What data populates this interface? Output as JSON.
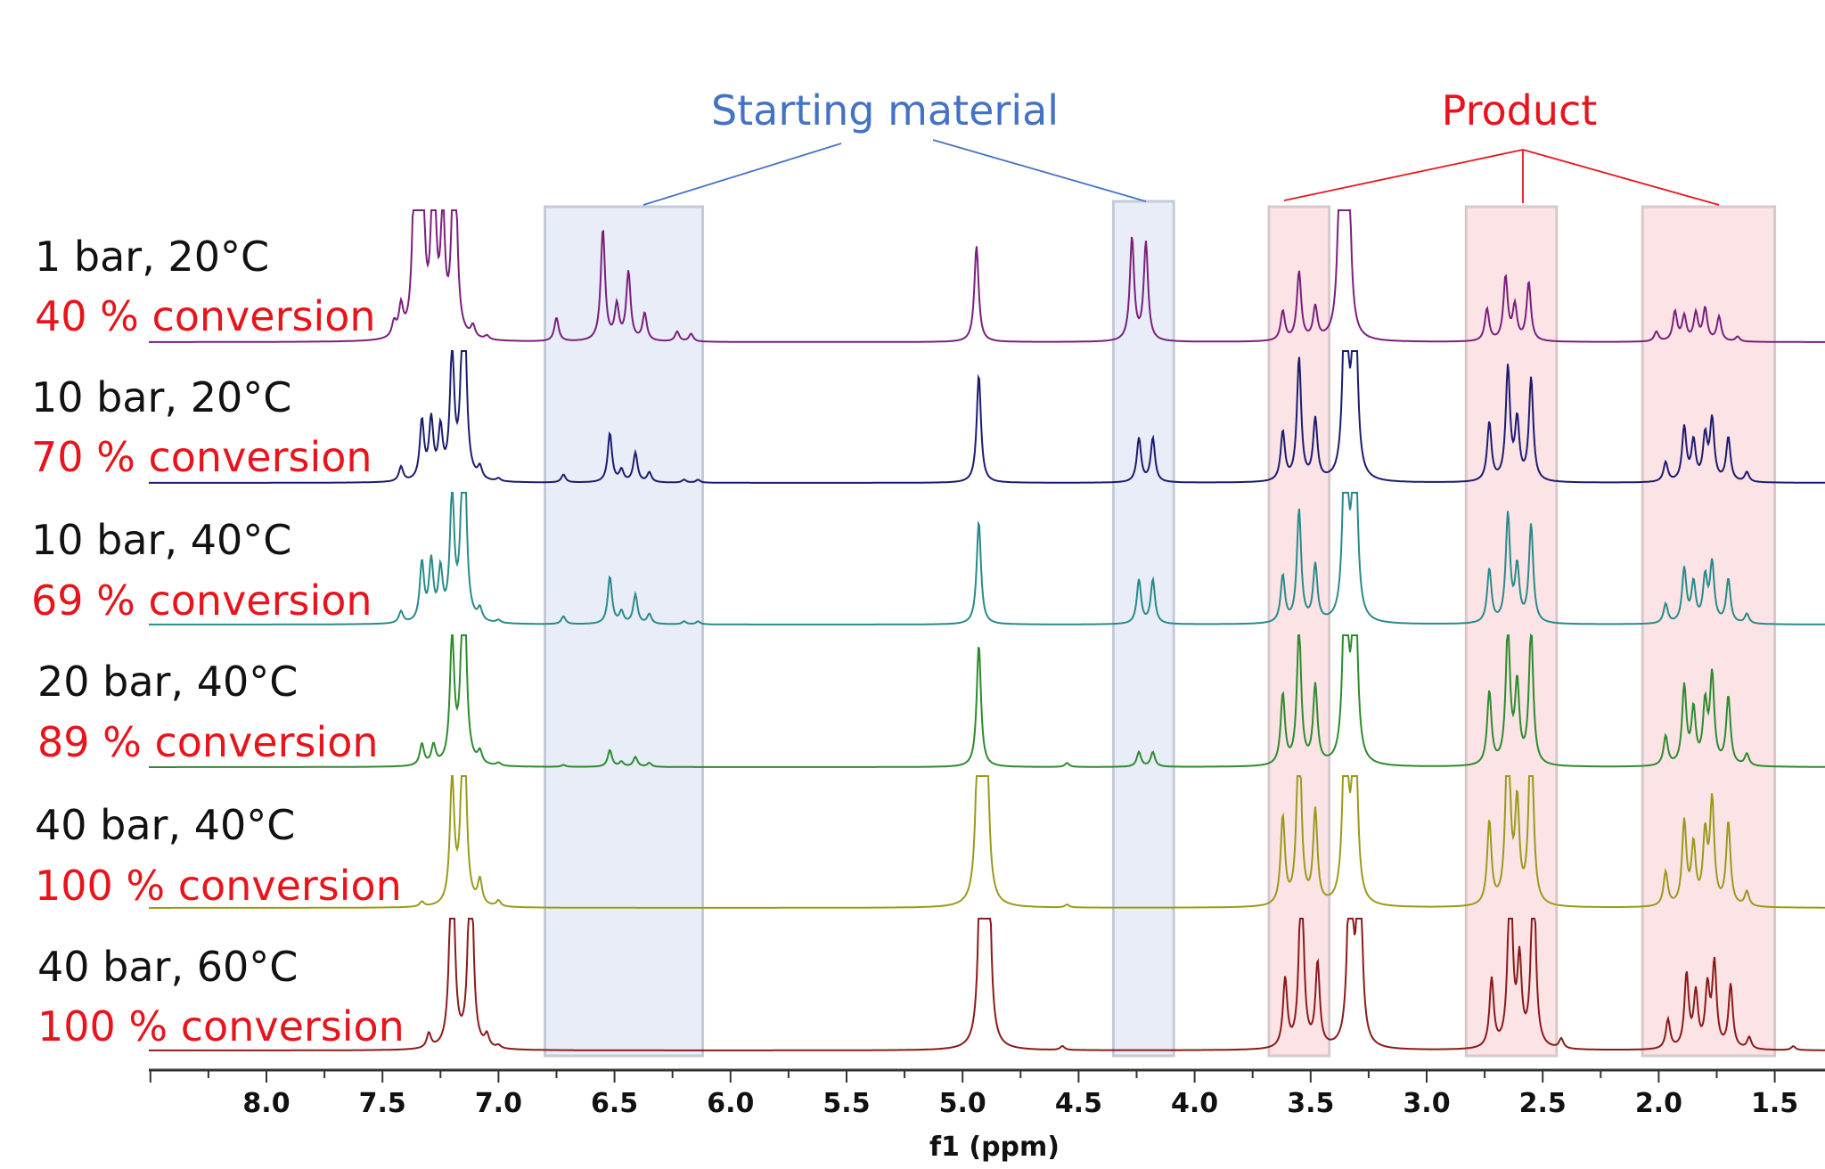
{
  "chart_data": {
    "type": "line",
    "title": "",
    "xlabel": "f1 (ppm)",
    "ylabel": "",
    "xlim": [
      8.5,
      1.28
    ],
    "x_reversed": true,
    "grid": false,
    "x_ticks": [
      "8.0",
      "7.5",
      "7.0",
      "6.5",
      "6.0",
      "5.5",
      "5.0",
      "4.5",
      "4.0",
      "3.5",
      "3.0",
      "2.5",
      "2.0",
      "1.5"
    ],
    "x_tick_values": [
      8.0,
      7.5,
      7.0,
      6.5,
      6.0,
      5.5,
      5.0,
      4.5,
      4.0,
      3.5,
      3.0,
      2.5,
      2.0,
      1.5
    ],
    "annotations": {
      "starting_material": {
        "label": "Starting material",
        "color": "#4472c4",
        "regions_ppm": [
          [
            6.8,
            6.12
          ],
          [
            4.35,
            4.09
          ]
        ]
      },
      "product": {
        "label": "Product",
        "color": "#e8141c",
        "regions_ppm": [
          [
            3.68,
            3.42
          ],
          [
            2.83,
            2.44
          ],
          [
            2.07,
            1.5
          ]
        ]
      }
    },
    "series": [
      {
        "label": "1 bar, 20°C",
        "conversion": "40 % conversion",
        "color": "#7b1f7e",
        "peaks": [
          [
            7.45,
            0.15
          ],
          [
            7.42,
            0.3
          ],
          [
            7.36,
            2
          ],
          [
            7.33,
            2
          ],
          [
            7.28,
            2
          ],
          [
            7.24,
            1.2
          ],
          [
            7.19,
            2.5
          ],
          [
            7.11,
            0.12
          ],
          [
            7.05,
            0.04
          ],
          [
            6.75,
            0.24
          ],
          [
            6.55,
            1.14
          ],
          [
            6.49,
            0.35
          ],
          [
            6.44,
            0.7
          ],
          [
            6.37,
            0.28
          ],
          [
            6.23,
            0.1
          ],
          [
            6.17,
            0.08
          ],
          [
            4.94,
            0.98
          ],
          [
            4.27,
            1.05
          ],
          [
            4.21,
            1.0
          ],
          [
            3.62,
            0.3
          ],
          [
            3.55,
            0.7
          ],
          [
            3.48,
            0.33
          ],
          [
            3.37,
            2.5
          ],
          [
            3.34,
            2.5
          ],
          [
            2.74,
            0.33
          ],
          [
            2.66,
            0.65
          ],
          [
            2.62,
            0.35
          ],
          [
            2.56,
            0.6
          ],
          [
            2.01,
            0.1
          ],
          [
            1.93,
            0.3
          ],
          [
            1.89,
            0.25
          ],
          [
            1.84,
            0.28
          ],
          [
            1.8,
            0.33
          ],
          [
            1.74,
            0.25
          ],
          [
            1.66,
            0.05
          ]
        ]
      },
      {
        "label": "10 bar, 20°C",
        "conversion": "70 % conversion",
        "color": "#1c1c70",
        "peaks": [
          [
            7.42,
            0.15
          ],
          [
            7.33,
            0.6
          ],
          [
            7.29,
            0.6
          ],
          [
            7.25,
            0.5
          ],
          [
            7.2,
            1.3
          ],
          [
            7.15,
            2.5
          ],
          [
            7.08,
            0.12
          ],
          [
            7.0,
            0.03
          ],
          [
            6.72,
            0.08
          ],
          [
            6.52,
            0.5
          ],
          [
            6.47,
            0.12
          ],
          [
            6.41,
            0.3
          ],
          [
            6.35,
            0.1
          ],
          [
            6.2,
            0.03
          ],
          [
            6.14,
            0.03
          ],
          [
            4.93,
            1.1
          ],
          [
            4.24,
            0.45
          ],
          [
            4.18,
            0.45
          ],
          [
            3.62,
            0.5
          ],
          [
            3.55,
            1.25
          ],
          [
            3.48,
            0.62
          ],
          [
            3.35,
            2.5
          ],
          [
            3.31,
            2.5
          ],
          [
            2.73,
            0.6
          ],
          [
            2.65,
            1.15
          ],
          [
            2.61,
            0.6
          ],
          [
            2.55,
            1.05
          ],
          [
            1.97,
            0.2
          ],
          [
            1.89,
            0.55
          ],
          [
            1.85,
            0.4
          ],
          [
            1.8,
            0.45
          ],
          [
            1.77,
            0.62
          ],
          [
            1.7,
            0.45
          ],
          [
            1.62,
            0.1
          ]
        ]
      },
      {
        "label": "10 bar, 40°C",
        "conversion": "69 % conversion",
        "color": "#2a8a8a",
        "peaks": [
          [
            7.42,
            0.12
          ],
          [
            7.33,
            0.6
          ],
          [
            7.29,
            0.6
          ],
          [
            7.25,
            0.5
          ],
          [
            7.2,
            1.3
          ],
          [
            7.15,
            2.5
          ],
          [
            7.08,
            0.12
          ],
          [
            7.0,
            0.03
          ],
          [
            6.72,
            0.08
          ],
          [
            6.52,
            0.48
          ],
          [
            6.47,
            0.12
          ],
          [
            6.41,
            0.3
          ],
          [
            6.35,
            0.1
          ],
          [
            6.2,
            0.03
          ],
          [
            6.14,
            0.03
          ],
          [
            4.93,
            1.05
          ],
          [
            4.24,
            0.45
          ],
          [
            4.18,
            0.45
          ],
          [
            3.62,
            0.48
          ],
          [
            3.55,
            1.15
          ],
          [
            3.48,
            0.58
          ],
          [
            3.35,
            2.5
          ],
          [
            3.31,
            2.5
          ],
          [
            2.73,
            0.55
          ],
          [
            2.65,
            1.1
          ],
          [
            2.61,
            0.55
          ],
          [
            2.55,
            1.0
          ],
          [
            1.97,
            0.2
          ],
          [
            1.89,
            0.55
          ],
          [
            1.85,
            0.4
          ],
          [
            1.8,
            0.45
          ],
          [
            1.77,
            0.6
          ],
          [
            1.7,
            0.45
          ],
          [
            1.62,
            0.1
          ]
        ]
      },
      {
        "label": "20 bar, 40°C",
        "conversion": "89 % conversion",
        "color": "#2e8b2e",
        "peaks": [
          [
            7.33,
            0.22
          ],
          [
            7.28,
            0.2
          ],
          [
            7.2,
            1.3
          ],
          [
            7.15,
            2.5
          ],
          [
            7.08,
            0.12
          ],
          [
            7.0,
            0.03
          ],
          [
            6.72,
            0.02
          ],
          [
            6.52,
            0.17
          ],
          [
            6.47,
            0.05
          ],
          [
            6.41,
            0.1
          ],
          [
            6.35,
            0.04
          ],
          [
            4.93,
            1.25
          ],
          [
            4.55,
            0.04
          ],
          [
            4.24,
            0.15
          ],
          [
            4.18,
            0.15
          ],
          [
            3.62,
            0.72
          ],
          [
            3.55,
            1.4
          ],
          [
            3.48,
            0.8
          ],
          [
            3.35,
            2.5
          ],
          [
            3.31,
            2.5
          ],
          [
            2.73,
            0.75
          ],
          [
            2.65,
            1.4
          ],
          [
            2.61,
            0.8
          ],
          [
            2.55,
            1.4
          ],
          [
            1.97,
            0.3
          ],
          [
            1.89,
            0.8
          ],
          [
            1.85,
            0.55
          ],
          [
            1.8,
            0.6
          ],
          [
            1.77,
            0.9
          ],
          [
            1.7,
            0.7
          ],
          [
            1.62,
            0.12
          ]
        ]
      },
      {
        "label": "40 bar, 40°C",
        "conversion": "100 % conversion",
        "color": "#9a9a1e",
        "peaks": [
          [
            7.33,
            0.05
          ],
          [
            7.2,
            1.3
          ],
          [
            7.15,
            2.5
          ],
          [
            7.08,
            0.25
          ],
          [
            7.0,
            0.06
          ],
          [
            4.93,
            2.5
          ],
          [
            4.9,
            2.5
          ],
          [
            4.55,
            0.03
          ],
          [
            3.62,
            0.9
          ],
          [
            3.55,
            2
          ],
          [
            3.48,
            0.95
          ],
          [
            3.35,
            2.5
          ],
          [
            3.31,
            2.5
          ],
          [
            2.73,
            0.85
          ],
          [
            2.65,
            2
          ],
          [
            2.61,
            1.0
          ],
          [
            2.55,
            2
          ],
          [
            1.97,
            0.35
          ],
          [
            1.89,
            0.85
          ],
          [
            1.85,
            0.6
          ],
          [
            1.8,
            0.7
          ],
          [
            1.77,
            1.05
          ],
          [
            1.7,
            0.85
          ],
          [
            1.62,
            0.15
          ]
        ]
      },
      {
        "label": "40 bar, 60°C",
        "conversion": "100 % conversion",
        "color": "#8b1a1a",
        "peaks": [
          [
            7.3,
            0.15
          ],
          [
            7.2,
            2.5
          ],
          [
            7.12,
            2.5
          ],
          [
            7.05,
            0.12
          ],
          [
            7.0,
            0.03
          ],
          [
            4.92,
            2.5
          ],
          [
            4.89,
            2.5
          ],
          [
            4.57,
            0.04
          ],
          [
            3.61,
            0.7
          ],
          [
            3.54,
            2
          ],
          [
            3.47,
            0.85
          ],
          [
            3.33,
            2.5
          ],
          [
            3.29,
            2.5
          ],
          [
            2.72,
            0.7
          ],
          [
            2.64,
            2
          ],
          [
            2.6,
            0.85
          ],
          [
            2.54,
            2
          ],
          [
            2.42,
            0.1
          ],
          [
            1.96,
            0.3
          ],
          [
            1.88,
            0.75
          ],
          [
            1.84,
            0.55
          ],
          [
            1.79,
            0.6
          ],
          [
            1.76,
            0.85
          ],
          [
            1.69,
            0.65
          ],
          [
            1.61,
            0.12
          ],
          [
            1.42,
            0.04
          ]
        ]
      }
    ]
  }
}
